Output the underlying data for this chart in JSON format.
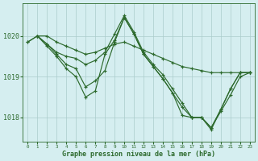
{
  "title": "Graphe pression niveau de la mer (hPa)",
  "bg_color": "#d5eef0",
  "grid_color": "#aacccc",
  "line_color": "#2d6a2d",
  "xlim": [
    -0.5,
    23.5
  ],
  "ylim": [
    1017.4,
    1020.8
  ],
  "yticks": [
    1018,
    1019,
    1020
  ],
  "xticks": [
    0,
    1,
    2,
    3,
    4,
    5,
    6,
    7,
    8,
    9,
    10,
    11,
    12,
    13,
    14,
    15,
    16,
    17,
    18,
    19,
    20,
    21,
    22,
    23
  ],
  "series": [
    {
      "x": [
        0,
        1,
        2,
        3,
        4,
        5,
        6,
        7,
        8,
        9,
        10,
        11,
        12,
        13,
        14,
        15,
        16,
        17,
        18,
        19,
        20,
        21,
        22,
        23
      ],
      "y": [
        1019.85,
        1020.0,
        1020.0,
        1019.85,
        1019.75,
        1019.65,
        1019.55,
        1019.6,
        1019.7,
        1019.8,
        1019.85,
        1019.75,
        1019.65,
        1019.55,
        1019.45,
        1019.35,
        1019.25,
        1019.2,
        1019.15,
        1019.1,
        1019.1,
        1019.1,
        1019.1,
        1019.1
      ]
    },
    {
      "x": [
        0,
        1,
        2,
        3,
        4,
        5,
        6,
        7,
        8,
        9,
        10,
        11,
        12,
        13,
        14,
        15,
        16,
        17,
        18,
        19,
        20,
        21,
        22,
        23
      ],
      "y": [
        1019.85,
        1020.0,
        1019.8,
        1019.6,
        1019.5,
        1019.45,
        1019.3,
        1019.4,
        1019.6,
        1020.05,
        1020.5,
        1020.1,
        1019.6,
        1019.3,
        1019.05,
        1018.7,
        1018.35,
        1018.0,
        1018.0,
        1017.75,
        1018.15,
        1018.55,
        1019.0,
        1019.1
      ]
    },
    {
      "x": [
        1,
        2,
        3,
        4,
        5,
        6,
        7,
        8,
        9,
        10,
        11,
        12,
        13,
        14,
        15,
        16,
        17,
        18,
        19,
        20,
        21,
        22,
        23
      ],
      "y": [
        1020.0,
        1019.8,
        1019.55,
        1019.3,
        1019.2,
        1018.75,
        1018.9,
        1019.15,
        1019.85,
        1020.45,
        1020.05,
        1019.55,
        1019.25,
        1018.95,
        1018.6,
        1018.25,
        1018.0,
        1018.0,
        1017.75,
        1018.2,
        1018.7,
        1019.1,
        1019.1
      ]
    },
    {
      "x": [
        1,
        2,
        3,
        4,
        5,
        6,
        7,
        8,
        9,
        10,
        11,
        12,
        13,
        14,
        15,
        16,
        17,
        18,
        19,
        20,
        21,
        22,
        23
      ],
      "y": [
        1020.0,
        1019.75,
        1019.5,
        1019.2,
        1019.0,
        1018.5,
        1018.65,
        1019.55,
        1019.9,
        1020.45,
        1020.05,
        1019.55,
        1019.25,
        1018.95,
        1018.6,
        1018.05,
        1018.0,
        1018.0,
        1017.7,
        1018.2,
        1018.7,
        1019.1,
        1019.1
      ]
    }
  ]
}
